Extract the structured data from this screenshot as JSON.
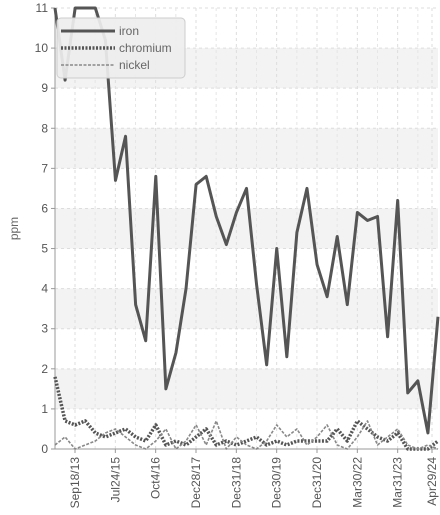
{
  "chart_data": {
    "type": "line",
    "title": "",
    "xlabel": "",
    "ylabel": "ppm",
    "ylim": [
      0,
      11
    ],
    "yticks": [
      0,
      1,
      2,
      3,
      4,
      5,
      6,
      7,
      8,
      9,
      10,
      11
    ],
    "grid": true,
    "legend_position": "top-left",
    "x_tick_labels": [
      "Sep18/13",
      "Jul24/15",
      "Oct4/16",
      "Dec28/17",
      "Dec31/18",
      "Dec30/19",
      "Dec31/20",
      "Mar30/22",
      "Mar31/23",
      "Apr29/24"
    ],
    "series": [
      {
        "name": "iron",
        "color": "#555555",
        "style": "solid",
        "values": [
          11,
          9.2,
          11,
          11,
          11,
          10.2,
          6.7,
          7.8,
          3.6,
          2.7,
          6.8,
          1.5,
          2.4,
          4,
          6.6,
          6.8,
          5.8,
          5.1,
          5.9,
          6.5,
          4.1,
          2.1,
          5,
          2.3,
          5.4,
          6.5,
          4.6,
          3.8,
          5.3,
          3.6,
          5.9,
          5.7,
          5.8,
          2.8,
          6.2,
          1.4,
          1.7,
          0.4,
          3.3
        ]
      },
      {
        "name": "chromium",
        "color": "#555555",
        "style": "dotted",
        "values": [
          1.8,
          0.7,
          0.6,
          0.7,
          0.4,
          0.3,
          0.4,
          0.5,
          0.3,
          0.2,
          0.6,
          0.1,
          0.2,
          0.1,
          0.3,
          0.5,
          0.1,
          0.2,
          0.1,
          0.2,
          0.3,
          0.1,
          0.2,
          0.1,
          0.2,
          0.2,
          0.2,
          0.2,
          0.5,
          0.2,
          0.7,
          0.5,
          0.3,
          0.2,
          0.4,
          0.0,
          0.0,
          0.0,
          0.2
        ]
      },
      {
        "name": "nickel",
        "color": "#888888",
        "style": "dashed",
        "values": [
          0.1,
          0.3,
          0.0,
          0.1,
          0.2,
          0.4,
          0.5,
          0.3,
          0.1,
          0.0,
          0.2,
          0.5,
          0.0,
          0.2,
          0.6,
          0.1,
          0.7,
          0.0,
          0.3,
          0.1,
          0.0,
          0.2,
          0.6,
          0.3,
          0.5,
          0.1,
          0.3,
          0.6,
          0.1,
          0.0,
          0.3,
          0.7,
          0.1,
          0.3,
          0.5,
          0.1,
          0.0,
          0.1,
          0.0
        ]
      }
    ]
  }
}
